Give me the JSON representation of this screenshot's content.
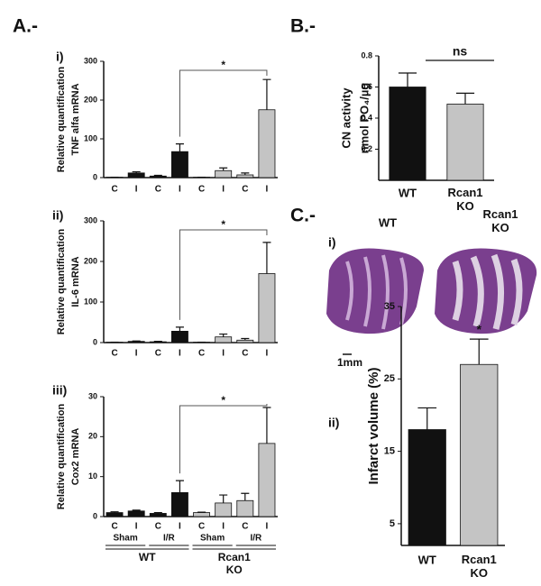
{
  "panel_labels": {
    "A": "A.-",
    "B": "B.-",
    "C": "C.-",
    "Ai": "i)",
    "Aii": "ii)",
    "Aiii": "iii)",
    "Ci": "i)",
    "Cii": "ii)"
  },
  "image_panel": {
    "labels": [
      "WT",
      "Rcan1\nKO"
    ],
    "scale": "1mm"
  },
  "chart_data": [
    {
      "type": "bar",
      "y_label": [
        "Relative quantification",
        "TNF alfa mRNA"
      ],
      "categories": [
        "C",
        "I",
        "C",
        "I",
        "C",
        "I",
        "C",
        "I"
      ],
      "values": [
        1,
        12,
        4,
        67,
        1,
        18,
        7,
        175
      ],
      "errors": [
        0,
        3,
        2,
        20,
        0,
        7,
        5,
        78
      ],
      "colors": [
        "#111111",
        "#111111",
        "#111111",
        "#111111",
        "#c4c4c4",
        "#c4c4c4",
        "#c4c4c4",
        "#c4c4c4"
      ],
      "ylim": [
        0,
        300
      ],
      "yticks": [
        0,
        100,
        200,
        300
      ],
      "significance_label": "*"
    },
    {
      "type": "bar",
      "y_label": [
        "Relative quantification",
        "IL-6  mRNA"
      ],
      "categories": [
        "C",
        "I",
        "C",
        "I",
        "C",
        "I",
        "C",
        "I"
      ],
      "values": [
        1,
        3,
        2,
        28,
        1,
        14,
        6,
        170
      ],
      "errors": [
        0,
        1,
        1,
        10,
        0,
        7,
        4,
        77
      ],
      "colors": [
        "#111111",
        "#111111",
        "#111111",
        "#111111",
        "#c4c4c4",
        "#c4c4c4",
        "#c4c4c4",
        "#c4c4c4"
      ],
      "ylim": [
        0,
        300
      ],
      "yticks": [
        0,
        100,
        200,
        300
      ],
      "significance_label": "*"
    },
    {
      "type": "bar",
      "y_label": [
        "Relative quantification",
        "Cox2 mRNA"
      ],
      "categories": [
        "C",
        "I",
        "C",
        "I",
        "C",
        "I",
        "C",
        "I"
      ],
      "values": [
        1,
        1.4,
        0.8,
        6,
        1,
        3.4,
        4,
        18.3
      ],
      "errors": [
        0.2,
        0.2,
        0.2,
        3,
        0.1,
        2,
        1.8,
        9
      ],
      "colors": [
        "#111111",
        "#111111",
        "#111111",
        "#111111",
        "#c4c4c4",
        "#c4c4c4",
        "#c4c4c4",
        "#c4c4c4"
      ],
      "ylim": [
        0,
        30
      ],
      "yticks": [
        0,
        10,
        20,
        30
      ],
      "significance_label": "*",
      "groups": [
        "Sham",
        "I/R",
        "Sham",
        "I/R"
      ],
      "genotypes": [
        "WT",
        "Rcan1\nKO"
      ]
    },
    {
      "type": "bar",
      "y_label": [
        "CN activity",
        "nmol PO₄/µg"
      ],
      "categories": [
        "WT",
        "Rcan1\nKO"
      ],
      "values": [
        0.6,
        0.49
      ],
      "errors": [
        0.09,
        0.07
      ],
      "colors": [
        "#111111",
        "#c4c4c4"
      ],
      "ylim": [
        0,
        0.8
      ],
      "yticks": [
        0.2,
        0.4,
        0.6,
        0.8
      ],
      "significance_label": "ns"
    },
    {
      "type": "bar",
      "y_label": [
        "Infarct volume (%)"
      ],
      "categories": [
        "WT",
        "Rcan1\nKO"
      ],
      "values": [
        18,
        27
      ],
      "errors": [
        3,
        3.5
      ],
      "colors": [
        "#111111",
        "#c4c4c4"
      ],
      "ylim": [
        2,
        35
      ],
      "yticks": [
        5,
        15,
        25,
        35
      ],
      "significance_label": "*"
    }
  ]
}
